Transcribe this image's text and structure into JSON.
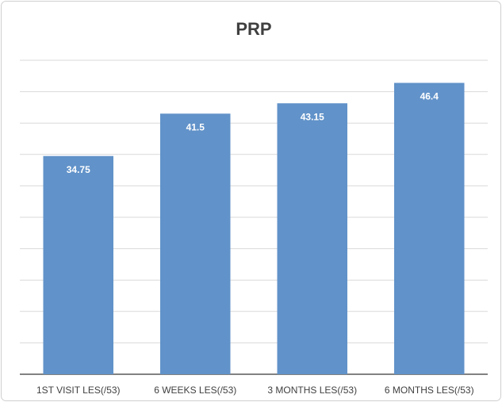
{
  "chart_data": {
    "type": "bar",
    "title": "PRP",
    "categories": [
      "1ST VISIT LES(/53)",
      "6 WEEKS LES(/53)",
      "3 MONTHS LES(/53)",
      "6 MONTHS LES(/53)"
    ],
    "values": [
      34.75,
      41.5,
      43.15,
      46.4
    ],
    "color": "#6192c9",
    "ylim": [
      0,
      50
    ],
    "yticks": [
      0,
      5,
      10,
      15,
      20,
      25,
      30,
      35,
      40,
      45,
      50
    ],
    "grid": true
  }
}
